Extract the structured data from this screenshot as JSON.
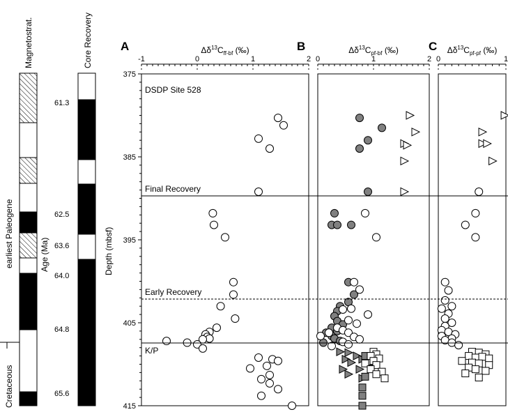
{
  "columns": {
    "magnetostrat_label": "Magnetostrat.",
    "core_recovery_label": "Core Recovery",
    "earliest_paleogene": "earliest Paleogene",
    "cretaceous": "Cretaceous",
    "age_label": "Age (Ma)",
    "age_ticks": [
      "61.3",
      "62.5",
      "63.6",
      "64.0",
      "64.8",
      "65.6"
    ],
    "depth_label": "Depth (mbsf)"
  },
  "annotations": {
    "site": "DSDP Site 528",
    "final": "Final Recovery",
    "early": "Early Recovery",
    "kp": "K/P"
  },
  "colors": {
    "filled_gray": "#808080",
    "open": "#ffffff",
    "stroke": "#000000"
  },
  "chart_data": [
    {
      "panel": "A",
      "type": "scatter",
      "title_main": "Δδ",
      "title_sup": "13",
      "title_c": "C",
      "title_sub": "ff-bf",
      "title_unit": " (‰)",
      "xlim": [
        -1,
        2
      ],
      "xticks": [
        "-1",
        "0",
        "1",
        "2"
      ],
      "ylim": [
        375,
        415
      ],
      "yticks": [
        "375",
        "385",
        "395",
        "405",
        "415"
      ],
      "y_inverted": true,
      "series": [
        {
          "marker": "circle",
          "fill": "open",
          "points": [
            [
              1.45,
              380.3
            ],
            [
              1.55,
              381.2
            ],
            [
              1.1,
              382.8
            ],
            [
              1.3,
              384.0
            ],
            [
              1.1,
              389.2
            ],
            [
              0.28,
              391.8
            ],
            [
              0.3,
              393.2
            ],
            [
              0.5,
              394.7
            ],
            [
              0.65,
              400.1
            ],
            [
              0.65,
              401.6
            ],
            [
              0.42,
              403.0
            ],
            [
              0.68,
              404.5
            ],
            [
              0.35,
              405.6
            ],
            [
              0.22,
              406.1
            ],
            [
              0.15,
              406.4
            ],
            [
              0.18,
              406.7
            ],
            [
              0.22,
              406.9
            ],
            [
              0.1,
              407.0
            ],
            [
              -0.55,
              407.2
            ],
            [
              -0.18,
              407.4
            ],
            [
              0.0,
              407.6
            ],
            [
              0.1,
              408.1
            ],
            [
              1.1,
              409.2
            ],
            [
              1.35,
              409.4
            ],
            [
              1.45,
              409.6
            ],
            [
              0.95,
              410.5
            ],
            [
              1.25,
              410.2
            ],
            [
              1.3,
              411.3
            ],
            [
              1.15,
              411.8
            ],
            [
              1.3,
              412.3
            ],
            [
              1.45,
              413.0
            ],
            [
              1.15,
              413.8
            ],
            [
              1.7,
              415.0
            ]
          ]
        }
      ]
    },
    {
      "panel": "B",
      "type": "scatter",
      "title_main": "Δδ",
      "title_sup": "13",
      "title_c": "C",
      "title_sub": "pf-bf",
      "title_unit": " (‰)",
      "xlim": [
        0,
        2
      ],
      "xticks": [
        "0",
        "1",
        "2"
      ],
      "ylim": [
        375,
        415
      ],
      "y_inverted": true,
      "series": [
        {
          "marker": "circle",
          "fill": "gray",
          "points": [
            [
              0.75,
              380.3
            ],
            [
              1.15,
              381.5
            ],
            [
              0.9,
              383.0
            ],
            [
              0.75,
              384.0
            ],
            [
              0.9,
              389.2
            ],
            [
              0.3,
              391.8
            ],
            [
              0.25,
              393.2
            ],
            [
              0.35,
              393.2
            ],
            [
              0.6,
              393.2
            ],
            [
              0.55,
              400.1
            ],
            [
              0.65,
              401.6
            ],
            [
              0.55,
              402.5
            ],
            [
              0.4,
              403.0
            ],
            [
              0.35,
              403.6
            ],
            [
              0.3,
              404.2
            ],
            [
              0.35,
              404.8
            ],
            [
              0.45,
              405.2
            ],
            [
              0.25,
              405.6
            ],
            [
              0.35,
              406.0
            ],
            [
              0.15,
              406.2
            ],
            [
              0.25,
              406.6
            ],
            [
              0.3,
              406.9
            ],
            [
              0.4,
              407.2
            ],
            [
              0.1,
              407.4
            ]
          ]
        },
        {
          "marker": "circle",
          "fill": "open",
          "points": [
            [
              0.85,
              391.8
            ],
            [
              1.05,
              394.7
            ],
            [
              0.65,
              400.1
            ],
            [
              0.75,
              401.0
            ],
            [
              0.6,
              403.3
            ],
            [
              0.45,
              403.4
            ],
            [
              0.9,
              404.0
            ],
            [
              0.55,
              404.7
            ],
            [
              0.7,
              405.1
            ],
            [
              0.35,
              405.6
            ],
            [
              0.45,
              405.9
            ],
            [
              0.55,
              406.2
            ],
            [
              0.2,
              406.2
            ],
            [
              0.05,
              406.6
            ],
            [
              0.65,
              406.7
            ],
            [
              0.75,
              407.0
            ],
            [
              0.45,
              407.3
            ],
            [
              0.55,
              407.6
            ],
            [
              0.25,
              407.8
            ]
          ]
        },
        {
          "marker": "triangle",
          "fill": "open",
          "points": [
            [
              1.65,
              380.0
            ],
            [
              1.75,
              382.0
            ],
            [
              1.55,
              383.4
            ],
            [
              1.6,
              383.6
            ],
            [
              1.55,
              385.5
            ],
            [
              1.55,
              389.2
            ]
          ]
        },
        {
          "marker": "triangle",
          "fill": "gray",
          "points": [
            [
              0.4,
              408.5
            ],
            [
              0.55,
              408.6
            ],
            [
              0.7,
              409.0
            ],
            [
              0.5,
              409.4
            ],
            [
              0.6,
              409.8
            ],
            [
              0.8,
              409.4
            ],
            [
              0.45,
              410.6
            ],
            [
              0.75,
              410.6
            ],
            [
              0.55,
              411.2
            ],
            [
              0.8,
              411.7
            ]
          ]
        },
        {
          "marker": "square",
          "fill": "gray",
          "points": [
            [
              0.85,
              409.0
            ],
            [
              0.95,
              410.5
            ],
            [
              0.85,
              411.5
            ],
            [
              0.8,
              413.8
            ],
            [
              0.8,
              412.8
            ],
            [
              0.8,
              415.0
            ]
          ]
        },
        {
          "marker": "square",
          "fill": "open",
          "points": [
            [
              1.0,
              408.5
            ],
            [
              1.05,
              408.8
            ],
            [
              0.95,
              409.0
            ],
            [
              1.1,
              409.3
            ],
            [
              1.0,
              409.6
            ],
            [
              0.85,
              409.9
            ],
            [
              1.05,
              410.1
            ],
            [
              0.95,
              410.6
            ],
            [
              1.15,
              410.9
            ],
            [
              1.2,
              411.7
            ],
            [
              1.05,
              411.2
            ]
          ]
        }
      ]
    },
    {
      "panel": "C",
      "type": "scatter",
      "title_main": "Δδ",
      "title_sup": "13",
      "title_c": "C",
      "title_sub": "pf-pf",
      "title_unit": " (‰)",
      "xlim": [
        0,
        1
      ],
      "xticks": [
        "0",
        "1"
      ],
      "ylim": [
        375,
        415
      ],
      "y_inverted": true,
      "series": [
        {
          "marker": "circle",
          "fill": "open",
          "points": [
            [
              0.6,
              389.2
            ],
            [
              0.55,
              391.8
            ],
            [
              0.4,
              393.2
            ],
            [
              0.55,
              394.7
            ],
            [
              0.1,
              400.1
            ],
            [
              0.15,
              401.1
            ],
            [
              0.1,
              402.3
            ],
            [
              0.2,
              403.0
            ],
            [
              0.05,
              403.3
            ],
            [
              0.15,
              403.9
            ],
            [
              0.1,
              404.5
            ],
            [
              0.2,
              405.0
            ],
            [
              0.1,
              405.4
            ],
            [
              0.05,
              405.9
            ],
            [
              0.15,
              406.1
            ],
            [
              0.25,
              406.4
            ],
            [
              0.2,
              406.9
            ],
            [
              0.05,
              406.6
            ],
            [
              0.1,
              407.1
            ],
            [
              0.2,
              407.4
            ],
            [
              0.3,
              407.7
            ]
          ]
        },
        {
          "marker": "triangle",
          "fill": "open",
          "points": [
            [
              0.98,
              380.0
            ],
            [
              0.65,
              382.0
            ],
            [
              0.65,
              383.4
            ],
            [
              0.72,
              383.4
            ],
            [
              0.8,
              385.5
            ]
          ]
        },
        {
          "marker": "square",
          "fill": "open",
          "points": [
            [
              0.5,
              408.5
            ],
            [
              0.6,
              408.6
            ],
            [
              0.7,
              408.8
            ],
            [
              0.45,
              409.0
            ],
            [
              0.55,
              409.2
            ],
            [
              0.65,
              409.1
            ],
            [
              0.75,
              409.3
            ],
            [
              0.35,
              409.6
            ],
            [
              0.5,
              409.8
            ],
            [
              0.6,
              409.9
            ],
            [
              0.75,
              410.1
            ],
            [
              0.45,
              410.4
            ],
            [
              0.55,
              410.6
            ],
            [
              0.7,
              410.8
            ],
            [
              0.6,
              411.6
            ],
            [
              0.4,
              411.1
            ]
          ]
        }
      ]
    }
  ]
}
